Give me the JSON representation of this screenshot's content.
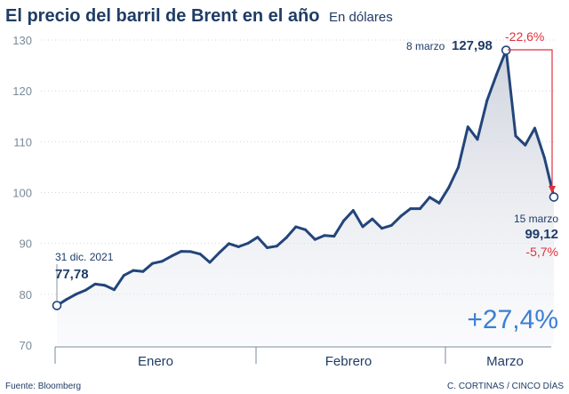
{
  "chart_data": {
    "type": "area",
    "title": "El precio del barril de Brent en el año",
    "subtitle": "En dólares",
    "ylim": [
      70,
      130
    ],
    "yticks": [
      70,
      80,
      90,
      100,
      110,
      120,
      130
    ],
    "months": [
      "Enero",
      "Febrero",
      "Marzo"
    ],
    "x": [
      "31 dic. 2021",
      "3 ene",
      "4 ene",
      "5 ene",
      "6 ene",
      "7 ene",
      "10 ene",
      "11 ene",
      "12 ene",
      "13 ene",
      "14 ene",
      "17 ene",
      "18 ene",
      "19 ene",
      "20 ene",
      "21 ene",
      "24 ene",
      "25 ene",
      "26 ene",
      "27 ene",
      "28 ene",
      "31 ene",
      "1 feb",
      "2 feb",
      "3 feb",
      "4 feb",
      "7 feb",
      "8 feb",
      "9 feb",
      "10 feb",
      "11 feb",
      "14 feb",
      "15 feb",
      "16 feb",
      "17 feb",
      "18 feb",
      "21 feb",
      "22 feb",
      "23 feb",
      "24 feb",
      "25 feb",
      "28 feb",
      "1 mar",
      "2 mar",
      "3 mar",
      "4 mar",
      "7 mar",
      "8 mar",
      "9 mar",
      "10 mar",
      "11 mar",
      "14 mar",
      "15 mar"
    ],
    "values": [
      77.78,
      78.98,
      80.0,
      80.8,
      82.0,
      81.75,
      80.9,
      83.7,
      84.67,
      84.47,
      86.06,
      86.48,
      87.51,
      88.44,
      88.38,
      87.89,
      86.27,
      88.2,
      89.96,
      89.34,
      90.03,
      91.21,
      89.16,
      89.47,
      91.11,
      93.27,
      92.69,
      90.78,
      91.55,
      91.41,
      94.44,
      96.48,
      93.28,
      94.81,
      92.97,
      93.54,
      95.39,
      96.84,
      96.84,
      99.08,
      97.93,
      100.99,
      104.97,
      112.93,
      110.46,
      118.11,
      123.21,
      127.98,
      111.14,
      109.33,
      112.67,
      106.9,
      99.12
    ],
    "annotations": {
      "start": {
        "label": "31 dic. 2021",
        "value": "77,78"
      },
      "peak": {
        "label": "8 marzo",
        "value": "127,98",
        "change": "-22,6%"
      },
      "end": {
        "label": "15 marzo",
        "value": "99,12",
        "change": "-5,7%"
      },
      "total_change": "+27,4%"
    }
  },
  "footer": {
    "source": "Fuente: Bloomberg",
    "credit": "C. CORTINAS / CINCO DÍAS"
  },
  "colors": {
    "line": "#22457a",
    "accent_red": "#e0323c",
    "accent_blue": "#3b7fd4",
    "text": "#1f3c66",
    "grid": "#cfd8e2"
  }
}
